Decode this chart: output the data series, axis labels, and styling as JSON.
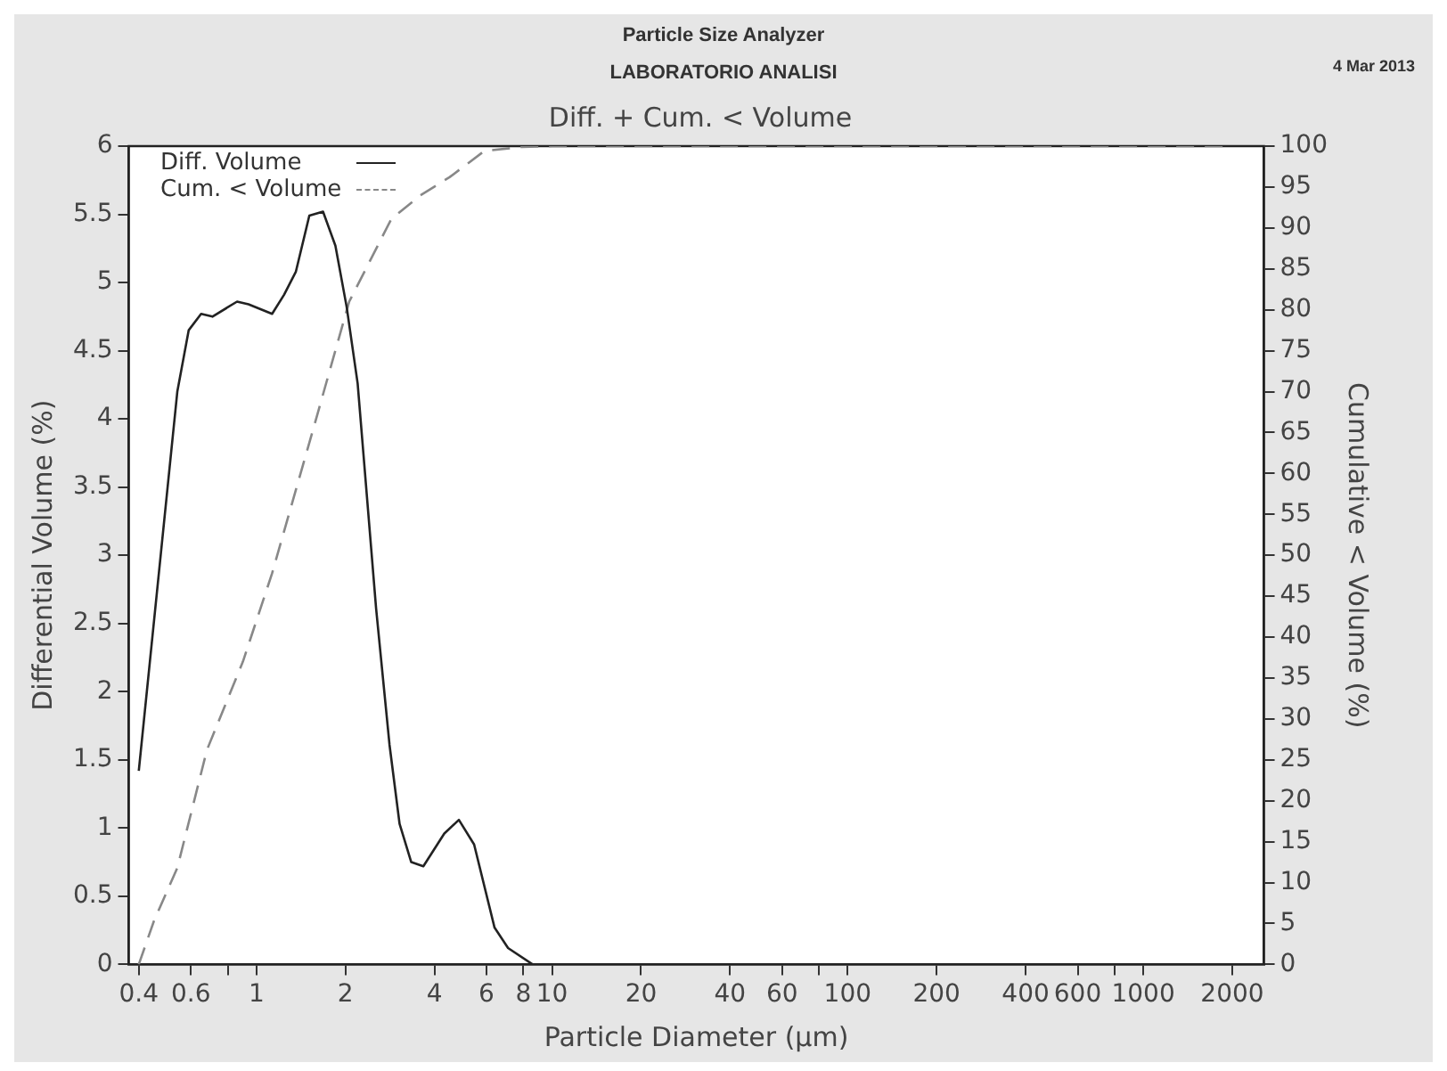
{
  "chart_data": {
    "type": "line",
    "title": "Diff. + Cum. < Volume",
    "xlabel": "Particle Diameter (µm)",
    "ylabel": "Differential Volume (%)",
    "y2label": "Cumulative < Volume (%)",
    "annotations": [
      "Particle Size Analyzer",
      "LABORATORIO ANALISI",
      "4 Mar 2013"
    ],
    "log": "x",
    "legend": "top left",
    "marker": "none",
    "xlim": [
      0.37,
      2560
    ],
    "xticks": [
      0.4,
      0.6,
      {
        "value": 0.8,
        "label": null
      },
      1,
      2,
      4,
      6,
      8,
      10,
      20,
      40,
      60,
      {
        "value": 80,
        "label": null
      },
      100,
      200,
      400,
      600,
      {
        "value": 800,
        "label": null
      },
      1000,
      2000
    ],
    "ylim": [
      0,
      6
    ],
    "yticks": [
      0,
      0.5,
      1,
      1.5,
      2,
      2.5,
      3,
      3.5,
      4,
      4.5,
      5,
      5.5,
      6
    ],
    "y2lim": [
      0,
      100
    ],
    "y2ticks": [
      0,
      5,
      10,
      15,
      20,
      25,
      30,
      35,
      40,
      45,
      50,
      55,
      60,
      65,
      70,
      75,
      80,
      85,
      90,
      95,
      100
    ],
    "series": [
      {
        "name": "Diff. Volume",
        "color": "#222222",
        "line_style": "solid",
        "x": [
          0.4,
          0.54,
          0.59,
          0.65,
          0.71,
          0.86,
          0.94,
          1.13,
          1.24,
          1.36,
          1.51,
          1.68,
          1.85,
          2.02,
          2.2,
          2.54,
          2.82,
          3.05,
          3.34,
          3.67,
          4.32,
          4.84,
          5.45,
          6.39,
          7.1,
          8.6,
          10
        ],
        "values": [
          1.42,
          4.2,
          4.65,
          4.77,
          4.75,
          4.86,
          4.84,
          4.77,
          4.91,
          5.08,
          5.49,
          5.52,
          5.27,
          4.82,
          4.26,
          2.61,
          1.61,
          1.03,
          0.75,
          0.72,
          0.96,
          1.06,
          0.88,
          0.27,
          0.12,
          0,
          0
        ]
      },
      {
        "name": "Cum. < Volume",
        "color": "#888888",
        "line_style": "dashed",
        "axis": "y2",
        "x": [
          0.4,
          0.45,
          0.54,
          0.68,
          0.9,
          1.13,
          1.57,
          2.06,
          2.86,
          3.59,
          4.5,
          5.9,
          7.9,
          10,
          2000
        ],
        "values": [
          0,
          5.3,
          11.8,
          26.2,
          37,
          47.8,
          65.9,
          81,
          91.1,
          94,
          96.2,
          99.4,
          99.9,
          100,
          100
        ]
      }
    ]
  }
}
